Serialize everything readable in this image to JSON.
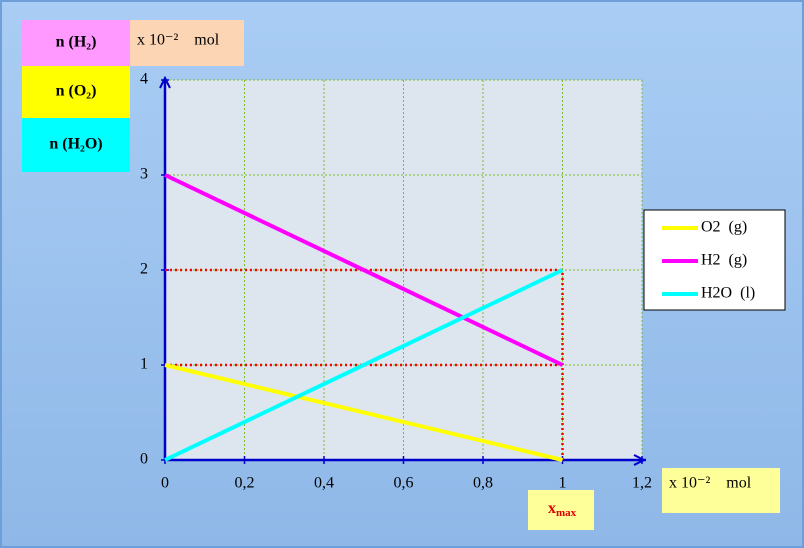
{
  "chart_data": {
    "type": "line",
    "x": [
      0,
      1
    ],
    "series": [
      {
        "name": "O2  (g)",
        "color": "#ffff00",
        "values": [
          1,
          0
        ]
      },
      {
        "name": "H2  (g)",
        "color": "#ff00ff",
        "values": [
          3,
          1
        ]
      },
      {
        "name": "H2O  (l)",
        "color": "#00ffff",
        "values": [
          0,
          2
        ]
      }
    ],
    "xlim": [
      0,
      1.2
    ],
    "ylim": [
      0,
      4
    ],
    "xticks": [
      0,
      {
        "value": 0.2,
        "label": "0,2"
      },
      {
        "value": 0.4,
        "label": "0,4"
      },
      {
        "value": 0.6,
        "label": "0,6"
      },
      {
        "value": 0.8,
        "label": "0,8"
      },
      1,
      {
        "value": 1.2,
        "label": "1,2"
      }
    ],
    "yticks": [
      0,
      1,
      2,
      3,
      4
    ],
    "grid": true,
    "y_unit": "x 10⁻²    mol",
    "x_unit": "x 10⁻²    mol",
    "y_labels": [
      {
        "text": "n (H₂)",
        "color": "#ff99ff"
      },
      {
        "text": "n (O₂)",
        "color": "#ffff00"
      },
      {
        "text": "n (H₂O)",
        "color": "#00ffff"
      }
    ],
    "x_marker": {
      "label": "x",
      "subscript": "max",
      "value": 1
    },
    "guide_lines": {
      "color": "#ff0000",
      "y": [
        1,
        2
      ]
    }
  }
}
